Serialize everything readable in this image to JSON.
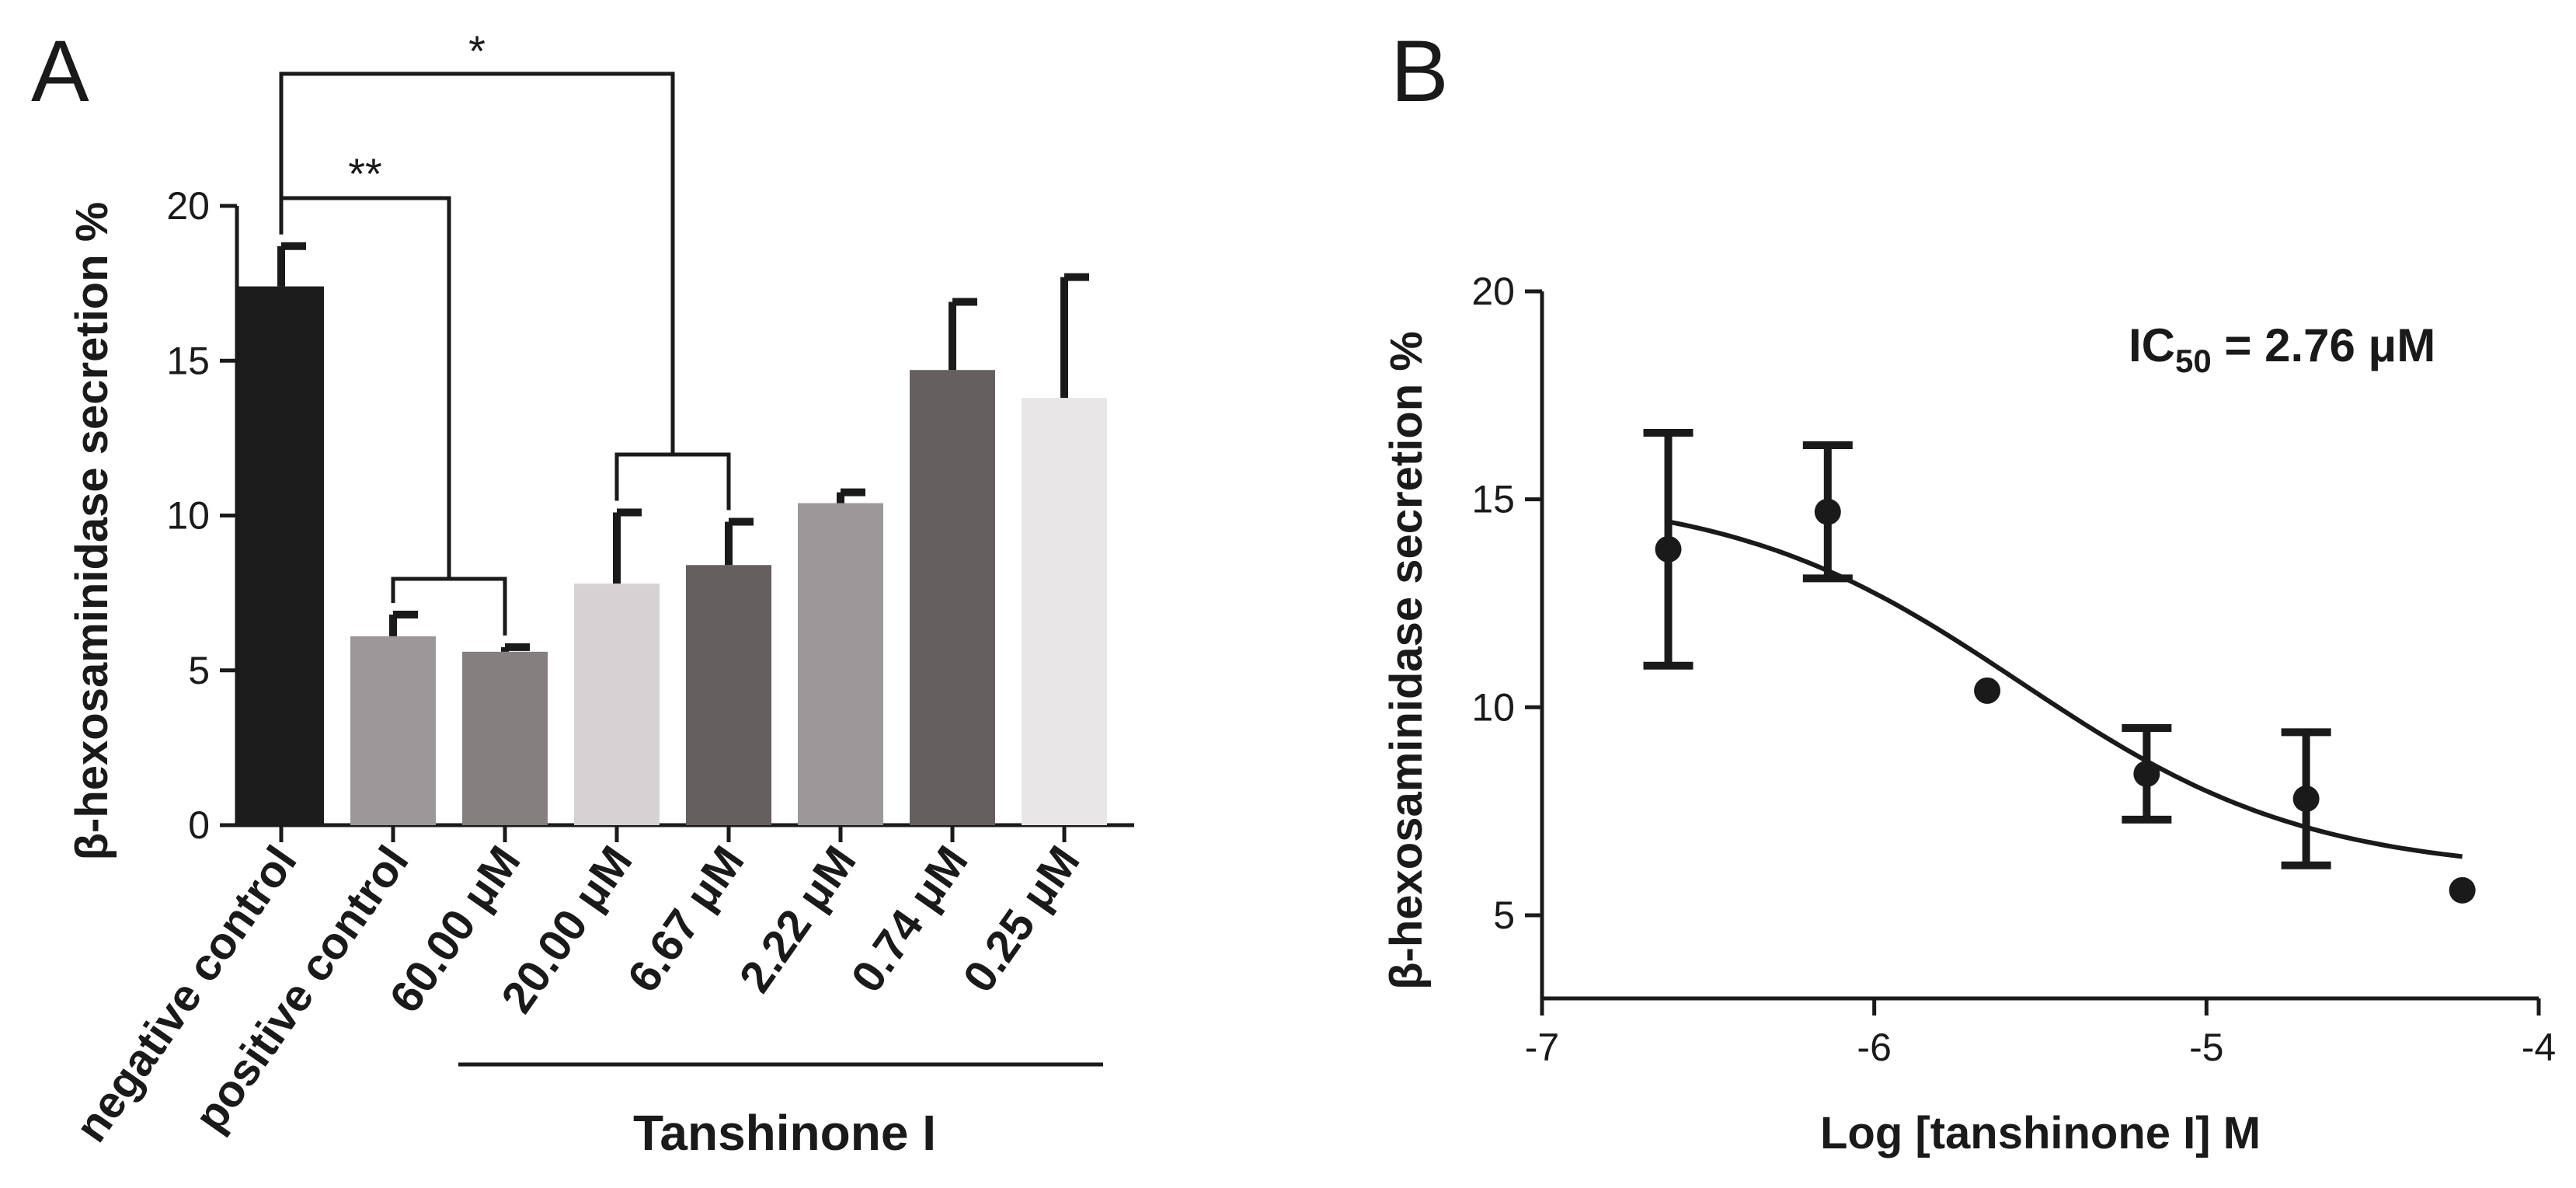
{
  "chart_data": [
    {
      "type": "bar",
      "panel_label": "A",
      "categories": [
        "negative control",
        "positive control",
        "60.00 μM",
        "20.00 μM",
        "6.67 μM",
        "2.22 μM",
        "0.74 μM",
        "0.25 μM"
      ],
      "values": [
        17.4,
        6.1,
        5.6,
        7.8,
        8.4,
        10.4,
        14.7,
        13.8
      ],
      "errors": [
        1.3,
        0.7,
        0.15,
        2.3,
        1.4,
        0.35,
        2.2,
        3.9
      ],
      "colors": [
        "#1c1c1c",
        "#9c9899",
        "#857f80",
        "#d6d2d3",
        "#665f60",
        "#9c9899",
        "#665f60",
        "#e9e6e7"
      ],
      "ylabel": "β-hexosaminidase secretion %",
      "ylim": [
        0,
        20
      ],
      "yticks": [
        0,
        5,
        10,
        15,
        20
      ],
      "group_label": "Tanshinone I",
      "annotations": [
        {
          "text": "**",
          "between": [
            "negative control",
            "positive control / 60.00 μM"
          ]
        },
        {
          "text": "*",
          "between": [
            "negative control",
            "20.00 μM / 6.67 μM"
          ]
        }
      ]
    },
    {
      "type": "scatter",
      "panel_label": "B",
      "x": [
        -6.62,
        -6.14,
        -5.66,
        -5.18,
        -4.7,
        -4.23
      ],
      "y": [
        13.8,
        14.7,
        10.4,
        8.4,
        7.8,
        5.6
      ],
      "errors": [
        2.8,
        1.6,
        0,
        1.1,
        1.6,
        0
      ],
      "ylabel": "β-hexosaminidase secretion %",
      "xlabel": "Log [tanshinone I] M",
      "xlim": [
        -7,
        -4
      ],
      "xticks": [
        -7,
        -6,
        -5,
        -4
      ],
      "ylim": [
        3,
        20
      ],
      "yticks": [
        5,
        10,
        15,
        20
      ],
      "fit": {
        "model": "sigmoidal dose-response",
        "top": 15.2,
        "bottom": 6.0,
        "log_ic50": -5.56,
        "hill_slope": -1,
        "x_range": [
          -6.62,
          -4.23
        ]
      },
      "annotation": {
        "prefix": "IC",
        "subscript": "50",
        "suffix": " = 2.76 μM"
      }
    }
  ]
}
